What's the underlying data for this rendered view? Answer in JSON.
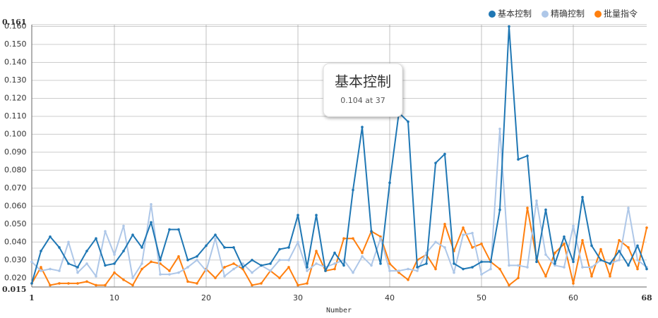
{
  "chart_data": {
    "type": "line",
    "xlabel": "Number",
    "x": [
      1,
      2,
      3,
      4,
      5,
      6,
      7,
      8,
      9,
      10,
      11,
      12,
      13,
      14,
      15,
      16,
      17,
      18,
      19,
      20,
      21,
      22,
      23,
      24,
      25,
      26,
      27,
      28,
      29,
      30,
      31,
      32,
      33,
      34,
      35,
      36,
      37,
      38,
      39,
      40,
      41,
      42,
      43,
      44,
      45,
      46,
      47,
      48,
      49,
      50,
      51,
      52,
      53,
      54,
      55,
      56,
      57,
      58,
      59,
      60,
      61,
      62,
      63,
      64,
      65,
      66,
      67,
      68
    ],
    "xlim": [
      1,
      68
    ],
    "xticks": [
      1,
      10,
      20,
      30,
      40,
      50,
      60,
      68
    ],
    "ylim": [
      0.015,
      0.161
    ],
    "yticks": [
      {
        "value": 0.015,
        "label": "0.015"
      },
      {
        "value": 0.02,
        "label": "0.020"
      },
      {
        "value": 0.03,
        "label": "0.030"
      },
      {
        "value": 0.04,
        "label": "0.040"
      },
      {
        "value": 0.05,
        "label": "0.050"
      },
      {
        "value": 0.06,
        "label": "0.060"
      },
      {
        "value": 0.07,
        "label": "0.070"
      },
      {
        "value": 0.08,
        "label": "0.080"
      },
      {
        "value": 0.09,
        "label": "0.090"
      },
      {
        "value": 0.1,
        "label": "0.100"
      },
      {
        "value": 0.11,
        "label": "0.110"
      },
      {
        "value": 0.12,
        "label": "0.120"
      },
      {
        "value": 0.13,
        "label": "0.130"
      },
      {
        "value": 0.14,
        "label": "0.140"
      },
      {
        "value": 0.15,
        "label": "0.150"
      },
      {
        "value": 0.16,
        "label": "0.160"
      },
      {
        "value": 0.161,
        "label": "0.161"
      }
    ],
    "grid": true,
    "legend": "top-right",
    "series": [
      {
        "name": "基本控制",
        "color": "#1f77b4",
        "values": [
          0.017,
          0.035,
          0.043,
          0.037,
          0.028,
          0.026,
          0.035,
          0.042,
          0.027,
          0.028,
          0.035,
          0.044,
          0.037,
          0.051,
          0.03,
          0.047,
          0.047,
          0.03,
          0.032,
          0.038,
          0.044,
          0.037,
          0.037,
          0.026,
          0.03,
          0.027,
          0.028,
          0.036,
          0.037,
          0.055,
          0.026,
          0.055,
          0.024,
          0.034,
          0.027,
          0.069,
          0.104,
          0.046,
          0.028,
          0.073,
          0.112,
          0.107,
          0.026,
          0.028,
          0.084,
          0.089,
          0.028,
          0.025,
          0.026,
          0.029,
          0.029,
          0.058,
          0.16,
          0.086,
          0.088,
          0.029,
          0.058,
          0.028,
          0.043,
          0.029,
          0.065,
          0.038,
          0.03,
          0.028,
          0.035,
          0.027,
          0.038,
          0.025
        ]
      },
      {
        "name": "精确控制",
        "color": "#aec7e8",
        "values": [
          0.029,
          0.024,
          0.025,
          0.024,
          0.04,
          0.023,
          0.028,
          0.021,
          0.046,
          0.033,
          0.049,
          0.02,
          0.028,
          0.061,
          0.022,
          0.022,
          0.023,
          0.026,
          0.03,
          0.024,
          0.042,
          0.021,
          0.025,
          0.028,
          0.023,
          0.027,
          0.024,
          0.03,
          0.03,
          0.04,
          0.024,
          0.028,
          0.026,
          0.028,
          0.03,
          0.023,
          0.032,
          0.027,
          0.042,
          0.024,
          0.024,
          0.025,
          0.024,
          0.034,
          0.04,
          0.037,
          0.023,
          0.044,
          0.045,
          0.022,
          0.025,
          0.103,
          0.027,
          0.027,
          0.026,
          0.063,
          0.033,
          0.027,
          0.026,
          0.049,
          0.026,
          0.026,
          0.03,
          0.028,
          0.03,
          0.059,
          0.03,
          0.026
        ]
      },
      {
        "name": "批量指令",
        "color": "#ff7f0e",
        "values": [
          0.017,
          0.026,
          0.016,
          0.017,
          0.017,
          0.017,
          0.018,
          0.016,
          0.016,
          0.023,
          0.019,
          0.016,
          0.025,
          0.029,
          0.028,
          0.024,
          0.032,
          0.018,
          0.017,
          0.025,
          0.02,
          0.026,
          0.028,
          0.025,
          0.016,
          0.017,
          0.024,
          0.02,
          0.026,
          0.016,
          0.017,
          0.035,
          0.024,
          0.025,
          0.042,
          0.042,
          0.034,
          0.046,
          0.043,
          0.028,
          0.023,
          0.019,
          0.03,
          0.033,
          0.025,
          0.05,
          0.035,
          0.048,
          0.037,
          0.039,
          0.029,
          0.025,
          0.016,
          0.02,
          0.059,
          0.031,
          0.021,
          0.034,
          0.039,
          0.017,
          0.041,
          0.021,
          0.036,
          0.021,
          0.041,
          0.037,
          0.025,
          0.048
        ]
      }
    ],
    "tooltip": {
      "title": "基本控制",
      "text": "0.104 at 37",
      "series": 0,
      "index": 36
    }
  }
}
